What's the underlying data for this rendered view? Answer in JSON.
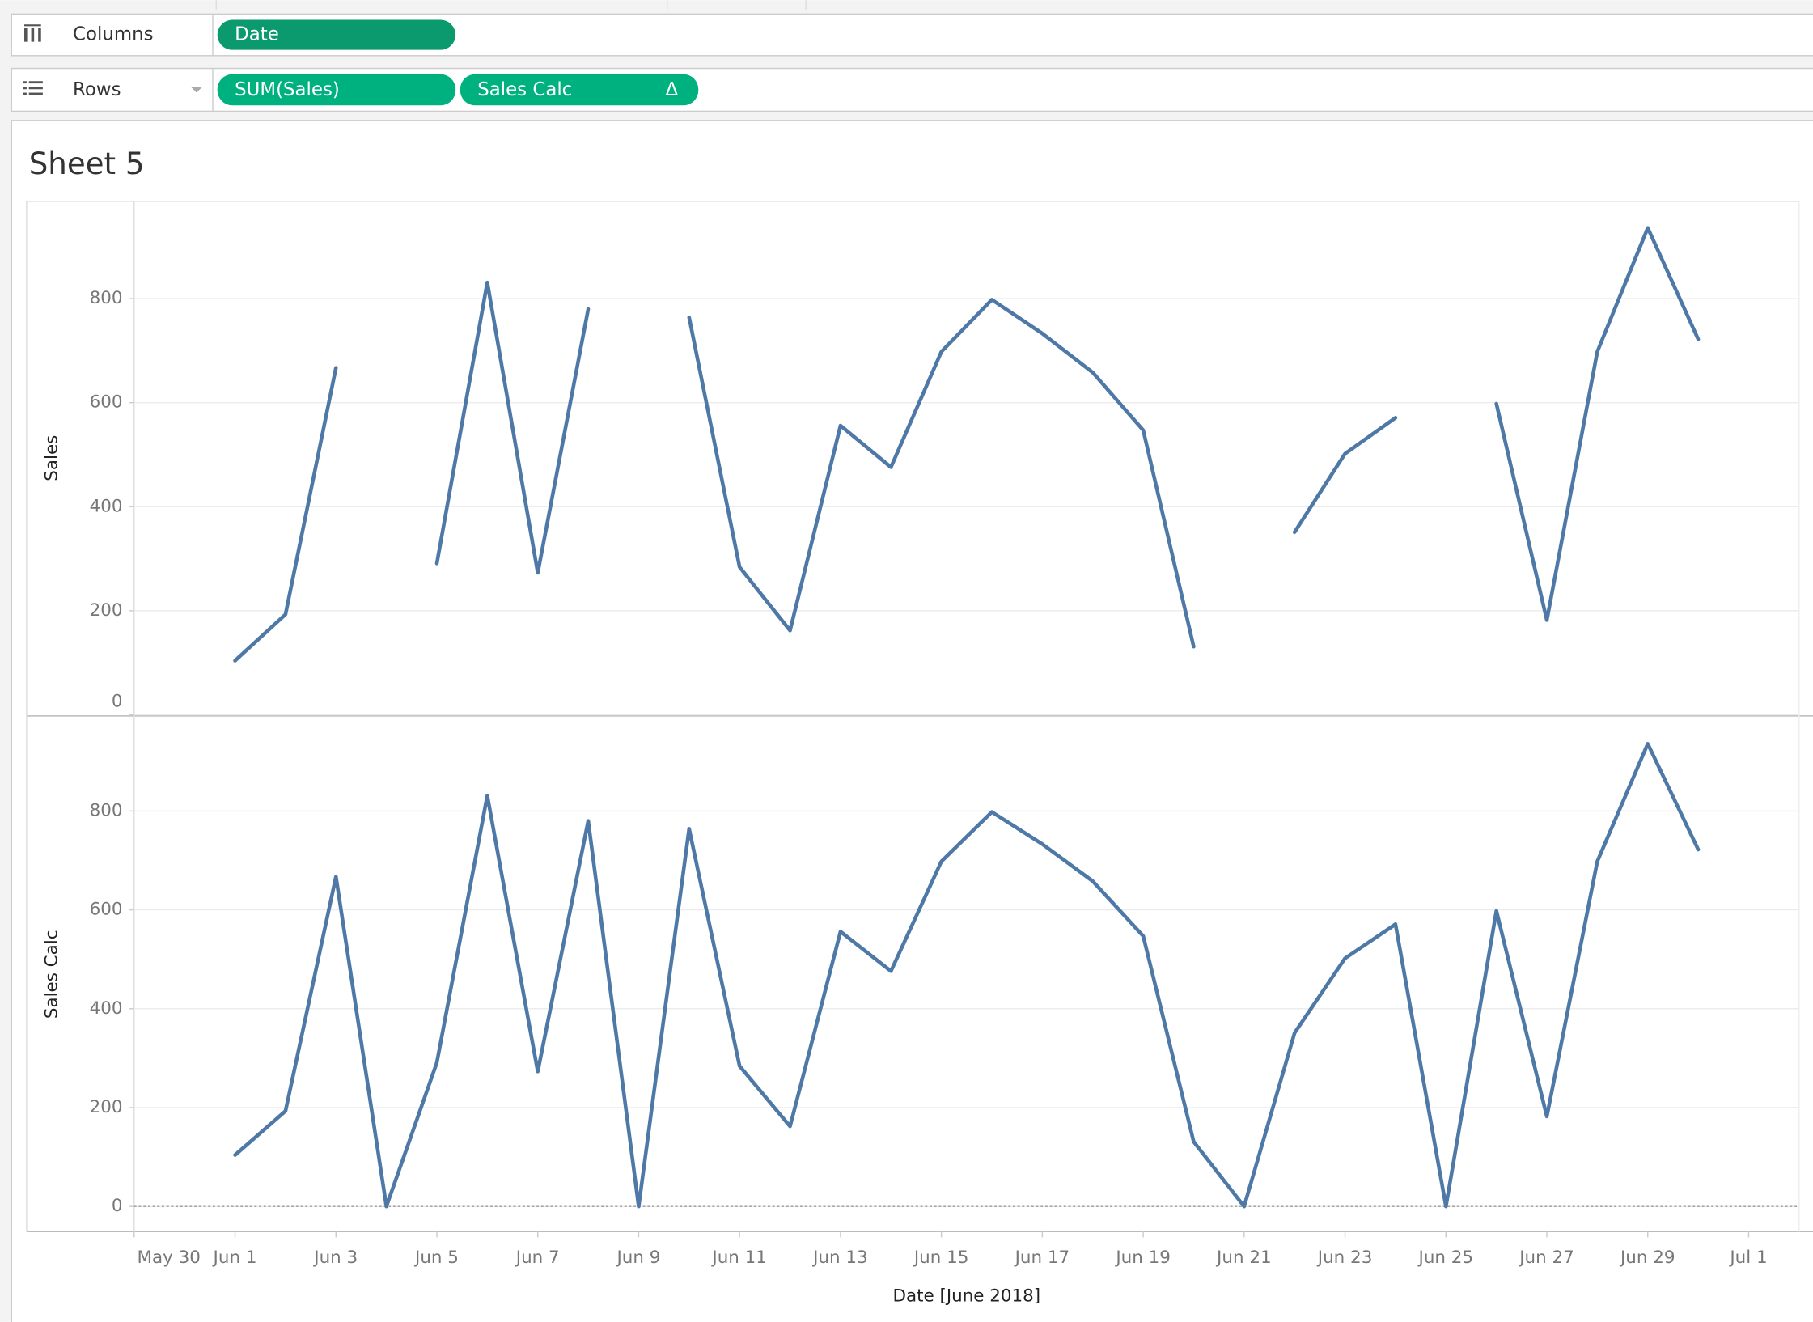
{
  "shelves": {
    "columns": {
      "label": "Columns",
      "pills": [
        "Date"
      ]
    },
    "rows": {
      "label": "Rows",
      "pills": [
        "SUM(Sales)",
        "Sales Calc"
      ],
      "pill_icon": "Δ"
    }
  },
  "sheet_title": "Sheet 5",
  "chart_data": [
    {
      "type": "line",
      "ylabel": "Sales",
      "color": "#4e79a7",
      "grid": true,
      "x": [
        "2018-06-01",
        "2018-06-02",
        "2018-06-03",
        "2018-06-04",
        "2018-06-05",
        "2018-06-06",
        "2018-06-07",
        "2018-06-08",
        "2018-06-09",
        "2018-06-10",
        "2018-06-11",
        "2018-06-12",
        "2018-06-13",
        "2018-06-14",
        "2018-06-15",
        "2018-06-16",
        "2018-06-17",
        "2018-06-18",
        "2018-06-19",
        "2018-06-20",
        "2018-06-21",
        "2018-06-22",
        "2018-06-23",
        "2018-06-24",
        "2018-06-25",
        "2018-06-26",
        "2018-06-27",
        "2018-06-28",
        "2018-06-29",
        "2018-06-30"
      ],
      "values": [
        104,
        193,
        667,
        null,
        291,
        831,
        273,
        780,
        null,
        764,
        284,
        162,
        556,
        476,
        698,
        798,
        733,
        658,
        547,
        131,
        null,
        351,
        502,
        571,
        null,
        598,
        182,
        698,
        936,
        722
      ],
      "xlim": [
        "2018-05-30",
        "2018-07-02"
      ],
      "ylim": [
        0,
        987
      ],
      "yticks": [
        0,
        200,
        400,
        600,
        800
      ]
    },
    {
      "type": "line",
      "ylabel": "Sales Calc",
      "xlabel": "Date [June 2018]",
      "color": "#4e79a7",
      "grid": true,
      "zero_line": true,
      "x": [
        "2018-06-01",
        "2018-06-02",
        "2018-06-03",
        "2018-06-04",
        "2018-06-05",
        "2018-06-06",
        "2018-06-07",
        "2018-06-08",
        "2018-06-09",
        "2018-06-10",
        "2018-06-11",
        "2018-06-12",
        "2018-06-13",
        "2018-06-14",
        "2018-06-15",
        "2018-06-16",
        "2018-06-17",
        "2018-06-18",
        "2018-06-19",
        "2018-06-20",
        "2018-06-21",
        "2018-06-22",
        "2018-06-23",
        "2018-06-24",
        "2018-06-25",
        "2018-06-26",
        "2018-06-27",
        "2018-06-28",
        "2018-06-29",
        "2018-06-30"
      ],
      "values": [
        104,
        193,
        667,
        0,
        291,
        831,
        273,
        780,
        0,
        764,
        284,
        162,
        556,
        476,
        698,
        798,
        733,
        658,
        547,
        131,
        0,
        351,
        502,
        571,
        0,
        598,
        182,
        698,
        936,
        722
      ],
      "xlim": [
        "2018-05-30",
        "2018-07-02"
      ],
      "ylim": [
        -51,
        990
      ],
      "yticks": [
        0,
        200,
        400,
        600,
        800
      ],
      "xticks": [
        {
          "value": "2018-05-30",
          "label": "May 30"
        },
        {
          "value": "2018-06-01",
          "label": "Jun 1"
        },
        {
          "value": "2018-06-03",
          "label": "Jun 3"
        },
        {
          "value": "2018-06-05",
          "label": "Jun 5"
        },
        {
          "value": "2018-06-07",
          "label": "Jun 7"
        },
        {
          "value": "2018-06-09",
          "label": "Jun 9"
        },
        {
          "value": "2018-06-11",
          "label": "Jun 11"
        },
        {
          "value": "2018-06-13",
          "label": "Jun 13"
        },
        {
          "value": "2018-06-15",
          "label": "Jun 15"
        },
        {
          "value": "2018-06-17",
          "label": "Jun 17"
        },
        {
          "value": "2018-06-19",
          "label": "Jun 19"
        },
        {
          "value": "2018-06-21",
          "label": "Jun 21"
        },
        {
          "value": "2018-06-23",
          "label": "Jun 23"
        },
        {
          "value": "2018-06-25",
          "label": "Jun 25"
        },
        {
          "value": "2018-06-27",
          "label": "Jun 27"
        },
        {
          "value": "2018-06-29",
          "label": "Jun 29"
        },
        {
          "value": "2018-07-01",
          "label": "Jul 1"
        }
      ]
    }
  ]
}
